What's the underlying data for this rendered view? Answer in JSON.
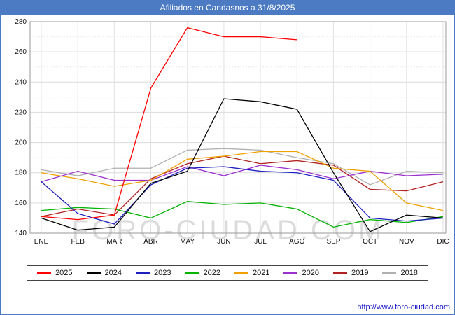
{
  "title_bar": {
    "text": "Afiliados en Candasnos a 31/8/2025"
  },
  "colors": {
    "title_bar_bg": "#4c7bc4",
    "title_text": "#ffffff",
    "page_border": "#4c7bc4",
    "footer_link": "#1414c8",
    "watermark": "#bebec3"
  },
  "watermark": {
    "text": "FORO-CIUDAD.COM"
  },
  "footer": {
    "url_text": "http://www.foro-ciudad.com"
  },
  "chart_data": {
    "type": "line",
    "title": "Afiliados en Candasnos a 31/8/2025",
    "xlabel": "",
    "ylabel": "",
    "x": [
      "ENE",
      "FEB",
      "MAR",
      "ABR",
      "MAY",
      "JUN",
      "JUL",
      "AGO",
      "SEP",
      "OCT",
      "NOV",
      "DIC"
    ],
    "ylim": [
      140,
      280
    ],
    "ytick_step": 20,
    "grid": true,
    "legend_position": "bottom",
    "series": [
      {
        "name": "2025",
        "color": "#ff0000",
        "values": [
          151,
          149,
          152,
          236,
          276,
          270,
          270,
          268,
          null,
          null,
          null,
          null
        ]
      },
      {
        "name": "2024",
        "color": "#000000",
        "values": [
          150,
          142,
          144,
          173,
          181,
          229,
          227,
          222,
          180,
          141,
          152,
          150
        ]
      },
      {
        "name": "2023",
        "color": "#2020c0",
        "values": [
          174,
          153,
          146,
          172,
          183,
          184,
          181,
          180,
          175,
          150,
          148,
          150
        ]
      },
      {
        "name": "2022",
        "color": "#00b400",
        "values": [
          155,
          157,
          156,
          150,
          161,
          159,
          160,
          156,
          144,
          149,
          147,
          151
        ]
      },
      {
        "name": "2021",
        "color": "#f0a000",
        "values": [
          180,
          176,
          171,
          175,
          189,
          191,
          194,
          194,
          183,
          181,
          160,
          155
        ]
      },
      {
        "name": "2020",
        "color": "#9b30d0",
        "values": [
          174,
          181,
          175,
          175,
          184,
          178,
          185,
          182,
          176,
          181,
          178,
          179
        ]
      },
      {
        "name": "2019",
        "color": "#b22222",
        "values": [
          151,
          156,
          152,
          176,
          186,
          191,
          186,
          188,
          185,
          169,
          168,
          174
        ]
      },
      {
        "name": "2018",
        "color": "#b0b0b0",
        "values": [
          182,
          178,
          183,
          183,
          195,
          196,
          195,
          190,
          186,
          172,
          181,
          180
        ]
      }
    ]
  }
}
